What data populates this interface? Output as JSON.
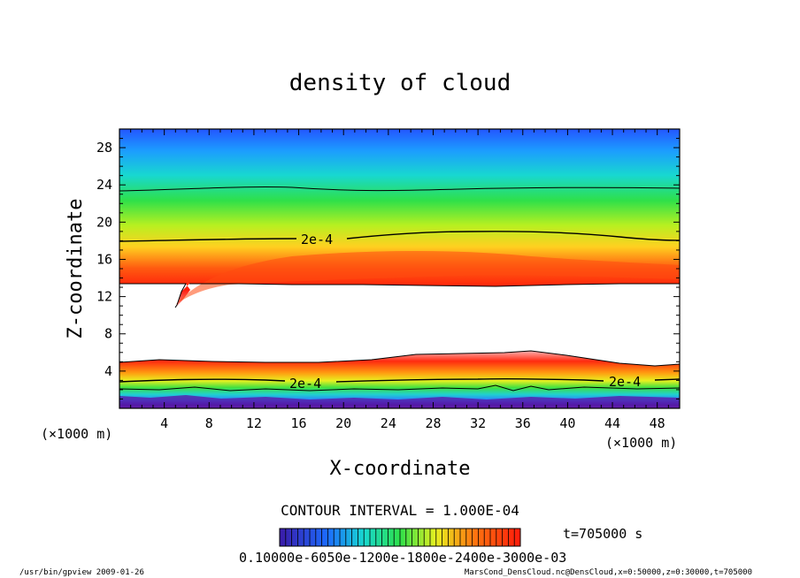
{
  "chart_data": {
    "type": "heatmap",
    "title": "density of cloud",
    "xlabel": "X-coordinate",
    "ylabel": "Z-coordinate",
    "x_unit": "(×1000 m)",
    "z_unit": "(×1000 m)",
    "xlim": [
      0,
      50
    ],
    "ylim": [
      0,
      30
    ],
    "x_ticks": [
      4,
      8,
      12,
      16,
      20,
      24,
      28,
      32,
      36,
      40,
      44,
      48
    ],
    "y_ticks": [
      4,
      8,
      12,
      16,
      20,
      24,
      28
    ],
    "contour_interval_text": "CONTOUR INTERVAL = 1.000E-04",
    "contour_labels": [
      "2e-4",
      "2e-4",
      "2e-4"
    ],
    "time_text": "t=705000 s",
    "colorbar_text": "0.10000e-6050e-1200e-1800e-2400e-3000e-03",
    "colors": {
      "low": "#3a1aa8",
      "mid_low": "#2aa0ff",
      "mid": "#2ee04a",
      "mid_high": "#f0e020",
      "high": "#ff2a10",
      "top": "#ff9a9a"
    }
  },
  "footer": {
    "left": "/usr/bin/gpview  2009-01-26",
    "right": "MarsCond_DensCloud.nc@DensCloud,x=0:50000,z=0:30000,t=705000"
  }
}
